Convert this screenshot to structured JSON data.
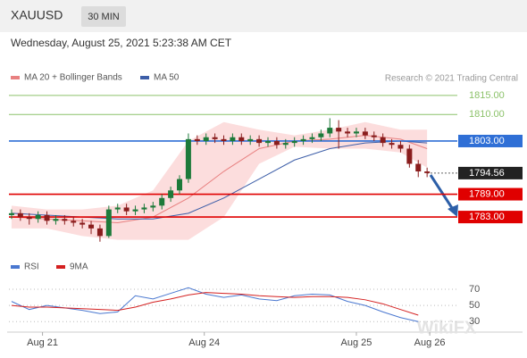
{
  "header": {
    "symbol": "XAUUSD",
    "timeframe": "30 MIN",
    "timestamp": "Wednesday, August 25, 2021 5:23:38 AM CET"
  },
  "watermark": "WikiFX",
  "chart_data": [
    {
      "type": "candlestick",
      "legend_note": "Research © 2021 Trading Central",
      "up_color": "#1d7a3a",
      "down_color": "#8a1d1d",
      "xlim": [
        -0.5,
        48.5
      ],
      "ylim": [
        1775.5,
        1817.8
      ],
      "xticks": [
        {
          "value": 3.5,
          "label": "Aug 21"
        },
        {
          "value": 21.8,
          "label": "Aug 24"
        },
        {
          "value": 39,
          "label": "Aug 25"
        },
        {
          "value": 47.3,
          "label": "Aug 26"
        }
      ],
      "open": [
        1783.5,
        1784,
        1783,
        1782.5,
        1783.5,
        1782,
        1782.5,
        1782,
        1781.5,
        1781,
        1780,
        1778,
        1785,
        1785.5,
        1784.5,
        1785,
        1785.5,
        1786,
        1788,
        1790,
        1793,
        1803.5,
        1803,
        1804,
        1803.5,
        1803,
        1804,
        1803,
        1803.5,
        1802.5,
        1803,
        1802,
        1802.5,
        1803,
        1803.5,
        1804,
        1805,
        1806.5,
        1805.5,
        1805,
        1805.5,
        1804.5,
        1804,
        1802.5,
        1802,
        1801,
        1797,
        1795
      ],
      "high": [
        1785,
        1785,
        1784,
        1784.5,
        1784.5,
        1783.5,
        1783.5,
        1783,
        1782.5,
        1782,
        1781,
        1786,
        1786.5,
        1786.5,
        1786,
        1786.5,
        1787,
        1789,
        1791,
        1794,
        1805,
        1804.5,
        1805,
        1805,
        1804.5,
        1805,
        1805,
        1804.5,
        1804.5,
        1804,
        1804,
        1803.5,
        1804,
        1804.5,
        1805,
        1806,
        1809,
        1808.5,
        1806.5,
        1806.5,
        1806.5,
        1805.5,
        1805,
        1803.5,
        1803,
        1802,
        1798,
        1796
      ],
      "low": [
        1782.5,
        1782,
        1781,
        1781.5,
        1781,
        1781,
        1781,
        1780.5,
        1780,
        1778.5,
        1776.5,
        1777.5,
        1784,
        1783.5,
        1783.5,
        1784,
        1784.5,
        1785,
        1787,
        1789,
        1792,
        1802,
        1802,
        1802.5,
        1802,
        1802,
        1802,
        1802,
        1801.5,
        1801.5,
        1801,
        1801,
        1801.5,
        1802,
        1802.5,
        1803,
        1804,
        1801,
        1804,
        1804,
        1803.5,
        1803,
        1801.5,
        1801,
        1800,
        1796,
        1793.5,
        1793.5
      ],
      "close": [
        1784,
        1783,
        1782.5,
        1783.5,
        1782,
        1782.5,
        1782,
        1781.5,
        1781,
        1780,
        1778,
        1785,
        1785.5,
        1784.5,
        1785,
        1785.5,
        1786,
        1788,
        1790,
        1793,
        1803.5,
        1803,
        1804,
        1803.5,
        1803,
        1804,
        1803,
        1803.5,
        1802.5,
        1803,
        1802,
        1802.5,
        1803,
        1803.5,
        1804,
        1805,
        1806.5,
        1805.5,
        1805,
        1805.5,
        1804.5,
        1804,
        1802.5,
        1802,
        1801,
        1797,
        1795,
        1794.56
      ],
      "overlays": [
        {
          "name": "MA 20 + Bollinger Bands",
          "color": "#e88080",
          "band_color": "#fbd5d5",
          "x": [
            0,
            4,
            8,
            12,
            16,
            20,
            24,
            28,
            32,
            36,
            40,
            44,
            47
          ],
          "values": [
            1783,
            1782.5,
            1782,
            1781.5,
            1783,
            1788,
            1795,
            1801,
            1803,
            1803.5,
            1804.5,
            1803.5,
            1801
          ],
          "upper": [
            1786,
            1785,
            1785,
            1786,
            1790,
            1803,
            1808,
            1806,
            1804.5,
            1806,
            1808,
            1806,
            1806
          ],
          "lower": [
            1780,
            1780,
            1778,
            1777,
            1777,
            1777,
            1783,
            1797,
            1801.5,
            1801,
            1801,
            1800,
            1796
          ]
        },
        {
          "name": "MA 50",
          "color": "#3d5ea8",
          "x": [
            0,
            4,
            8,
            12,
            16,
            20,
            24,
            28,
            32,
            36,
            40,
            44,
            47
          ],
          "values": [
            1784,
            1783.5,
            1783,
            1782.5,
            1782.5,
            1784,
            1788,
            1793,
            1798,
            1801,
            1802.5,
            1803,
            1802.5
          ]
        }
      ],
      "levels": [
        {
          "value": 1815,
          "label": "1815.00",
          "color": "#8cc26a",
          "boxed": false,
          "dashed": false
        },
        {
          "value": 1810,
          "label": "1810.00",
          "color": "#8cc26a",
          "boxed": false,
          "dashed": false
        },
        {
          "value": 1803,
          "label": "1803.00",
          "color": "#2f6fd6",
          "boxed": true,
          "dashed": false
        },
        {
          "value": 1794.56,
          "label": "1794.56",
          "color": "#222222",
          "boxed": true,
          "dashed": true
        },
        {
          "value": 1789,
          "label": "1789.00",
          "color": "#e00000",
          "boxed": true,
          "dashed": false
        },
        {
          "value": 1783,
          "label": "1783.00",
          "color": "#e00000",
          "boxed": true,
          "dashed": false
        }
      ]
    },
    {
      "type": "line",
      "xlim": [
        -0.5,
        48.5
      ],
      "ylim": [
        17,
        80
      ],
      "yticks": [
        30,
        50,
        70
      ],
      "series": [
        {
          "name": "RSI",
          "color": "#4a78d0",
          "x": [
            0,
            2,
            4,
            6,
            8,
            10,
            12,
            14,
            16,
            18,
            20,
            22,
            24,
            26,
            28,
            30,
            32,
            34,
            36,
            38,
            40,
            42,
            44,
            46
          ],
          "values": [
            55,
            45,
            50,
            47,
            44,
            40,
            42,
            62,
            58,
            65,
            72,
            64,
            60,
            63,
            58,
            56,
            62,
            64,
            63,
            55,
            50,
            42,
            35,
            30
          ]
        },
        {
          "name": "9MA",
          "color": "#d42020",
          "x": [
            0,
            2,
            4,
            6,
            8,
            10,
            12,
            14,
            16,
            18,
            20,
            22,
            24,
            26,
            28,
            30,
            32,
            34,
            36,
            38,
            40,
            42,
            44,
            46
          ],
          "values": [
            50,
            48,
            48,
            47,
            46,
            45,
            44,
            48,
            54,
            58,
            63,
            66,
            65,
            64,
            62,
            61,
            60,
            61,
            61,
            60,
            57,
            52,
            45,
            38
          ]
        }
      ]
    }
  ]
}
